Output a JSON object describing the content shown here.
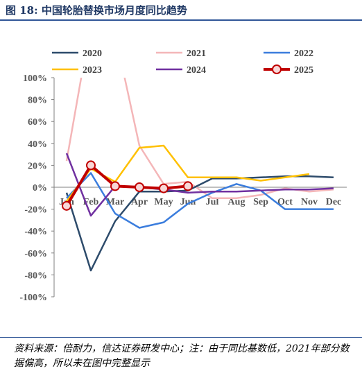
{
  "figure": {
    "title": "图 18:  中国轮胎替换市场月度同比趋势",
    "source": "资料来源：倍耐力，信达证券研发中心；注：由于同比基数低，2021年部分数据偏高，所以未在图中完整显示"
  },
  "chart_data": {
    "type": "line",
    "categories": [
      "Jan",
      "Feb",
      "Mar",
      "Apr",
      "May",
      "Jun",
      "Jul",
      "Aug",
      "Sep",
      "Oct",
      "Nov",
      "Dec"
    ],
    "ylim": [
      -100,
      100
    ],
    "yticks": [
      -100,
      -80,
      -60,
      -40,
      -20,
      0,
      20,
      40,
      60,
      80,
      100
    ],
    "ytick_labels": [
      "-100%",
      "-80%",
      "-60%",
      "-40%",
      "-20%",
      "0%",
      "20%",
      "40%",
      "60%",
      "80%",
      "100%"
    ],
    "ylabel": "",
    "xlabel": "",
    "grid": false,
    "legend_position": "top",
    "series": [
      {
        "name": "2020",
        "color": "#2d4b6b",
        "values": [
          -5,
          -76,
          -31,
          -4,
          -4,
          -3,
          8,
          8,
          9,
          10,
          10,
          9
        ]
      },
      {
        "name": "2021",
        "color": "#f4b6b8",
        "values": [
          24,
          150,
          140,
          38,
          3,
          5,
          -10,
          -10,
          -7,
          -1,
          -4,
          -2
        ]
      },
      {
        "name": "2022",
        "color": "#3b7ddd",
        "values": [
          -10,
          13,
          -24,
          -37,
          -32,
          -15,
          -5,
          3,
          -3,
          -20,
          -20,
          -20
        ]
      },
      {
        "name": "2023",
        "color": "#ffc000",
        "values": [
          -13,
          17,
          5,
          36,
          38,
          9,
          9,
          9,
          6,
          9,
          12,
          null
        ]
      },
      {
        "name": "2024",
        "color": "#7030a0",
        "values": [
          31,
          -26,
          1,
          0,
          -2,
          -5,
          -4,
          -4,
          -3,
          -2,
          -2,
          -1
        ]
      },
      {
        "name": "2025",
        "color": "#c00000",
        "values": [
          -17,
          20,
          1,
          0,
          -1,
          1,
          null,
          null,
          null,
          null,
          null,
          null
        ]
      }
    ]
  }
}
